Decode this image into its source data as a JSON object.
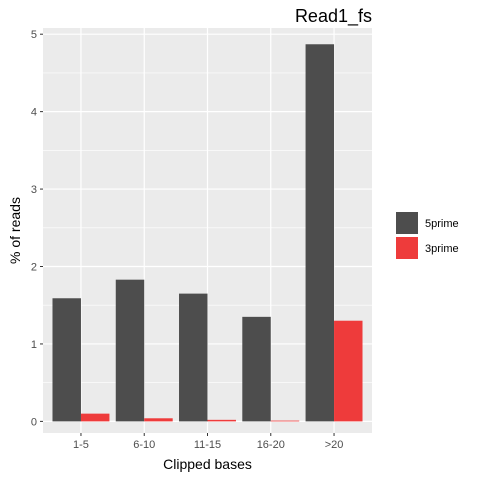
{
  "chart_data": {
    "type": "bar",
    "title": "Read1_fs",
    "xlabel": "Clipped bases",
    "ylabel": "% of reads",
    "categories": [
      "1-5",
      "6-10",
      "11-15",
      "16-20",
      ">20"
    ],
    "series": [
      {
        "name": "5prime",
        "color": "#4d4d4d",
        "values": [
          1.59,
          1.83,
          1.65,
          1.35,
          4.87
        ]
      },
      {
        "name": "3prime",
        "color": "#ee3b3b",
        "values": [
          0.1,
          0.04,
          0.02,
          0.01,
          1.3
        ]
      }
    ],
    "ylim": [
      -0.15,
      5.08
    ],
    "yticks": [
      0,
      1,
      2,
      3,
      4,
      5
    ],
    "grid": true,
    "legend_position": "right",
    "panel_background": "#ebebeb"
  }
}
